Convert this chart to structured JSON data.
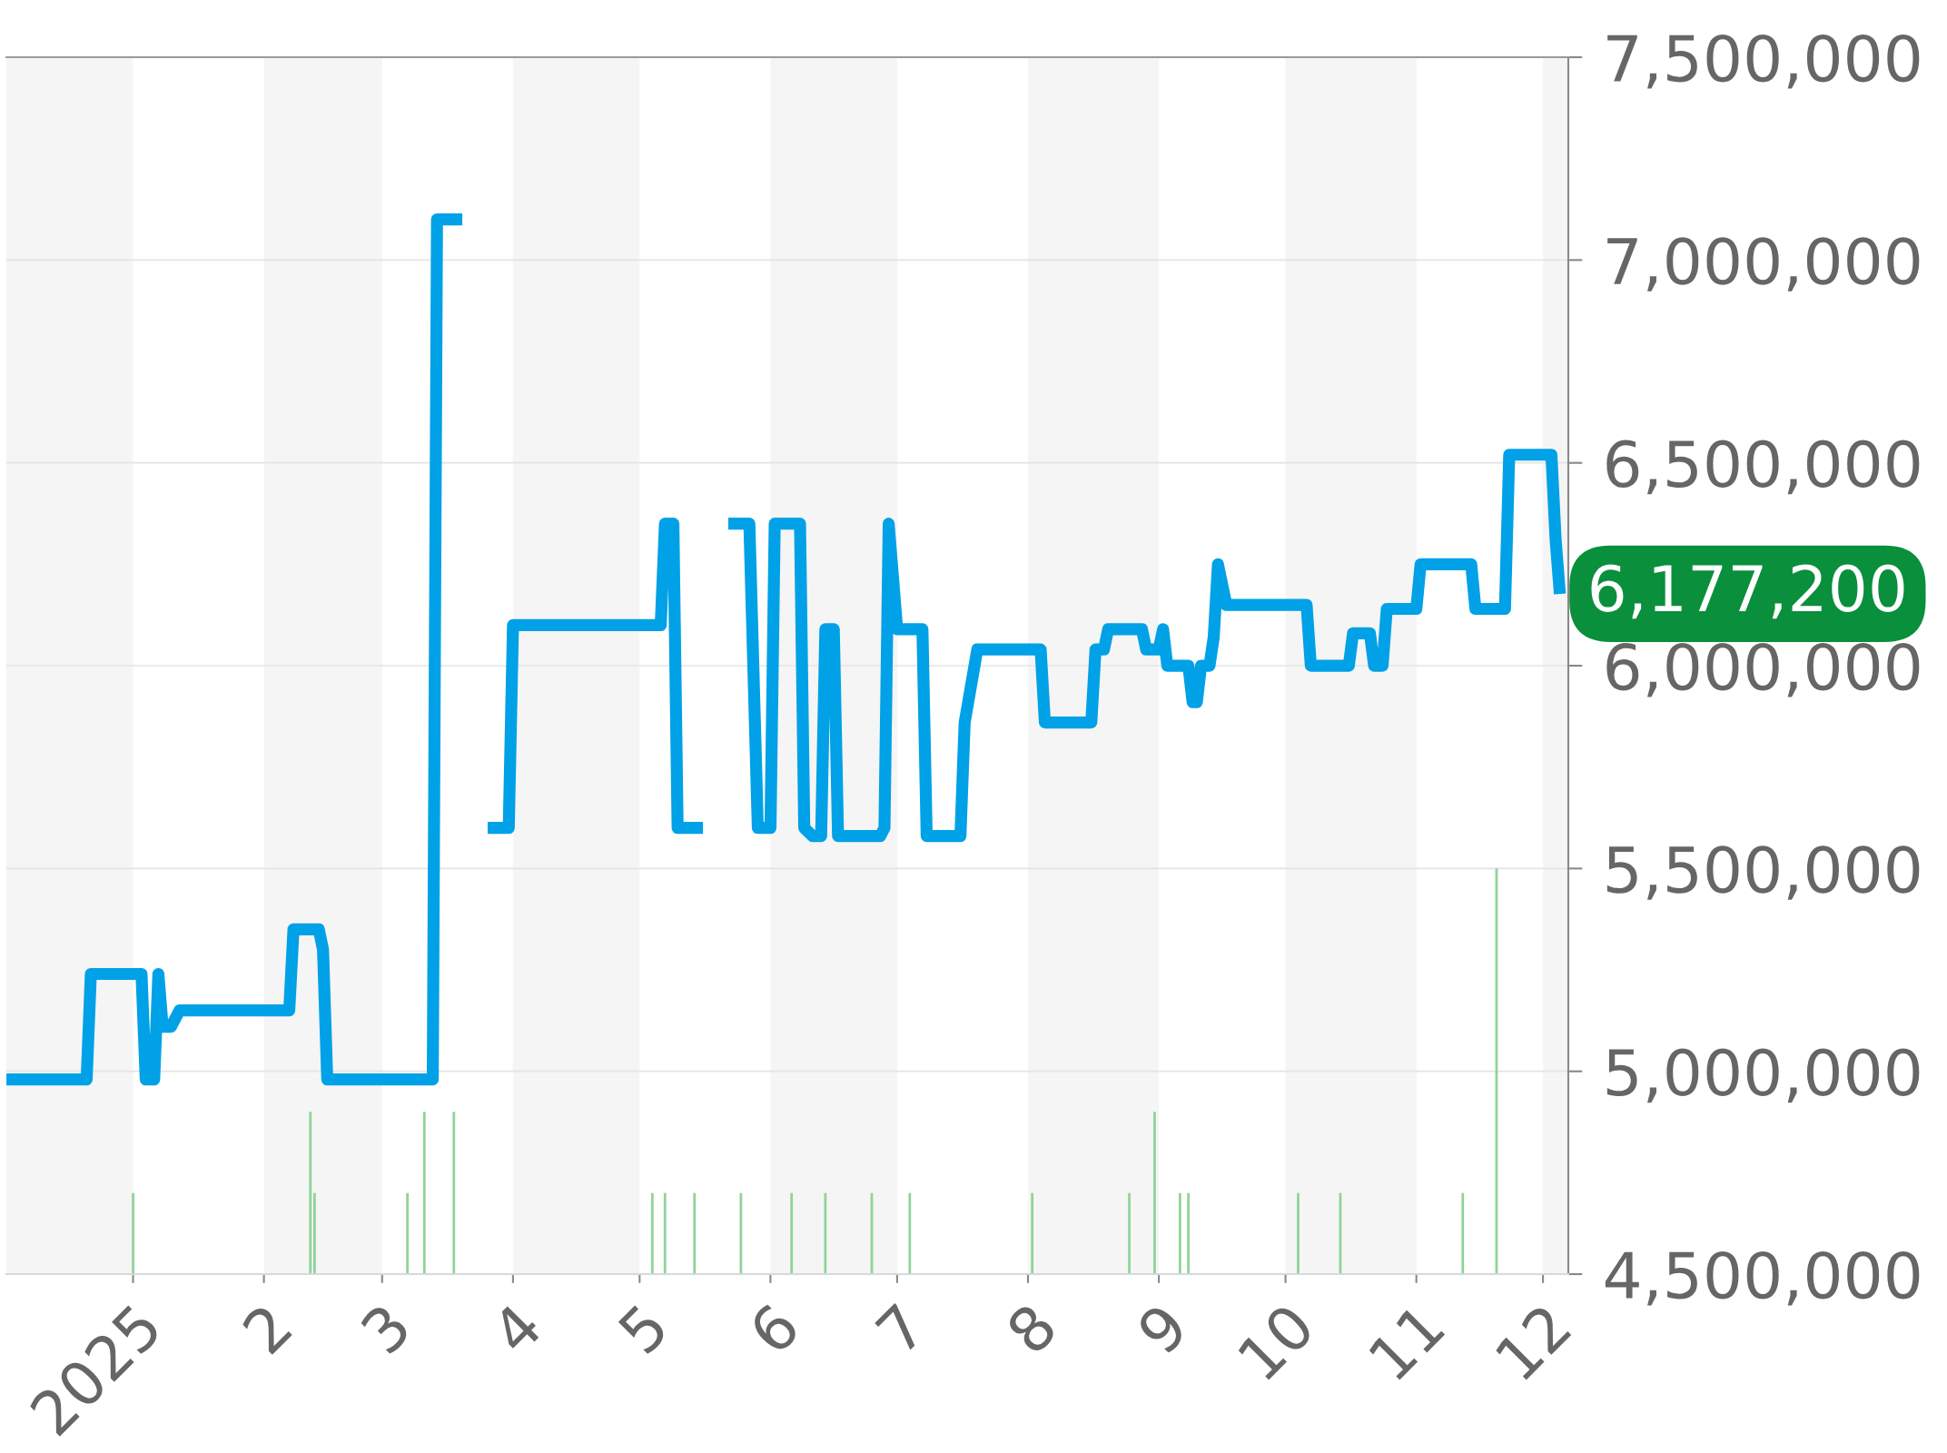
{
  "chart_data": {
    "type": "line",
    "x": [
      "2024-12-02",
      "2024-12-21",
      "2024-12-22",
      "2025-01-03",
      "2025-01-04",
      "2025-01-06",
      "2025-01-07",
      "2025-01-08",
      "2025-01-10",
      "2025-01-12",
      "2025-02-07",
      "2025-02-08",
      "2025-02-14",
      "2025-02-15",
      "2025-02-16",
      "2025-03-13",
      "2025-03-14",
      "2025-03-20",
      "2025-03-23",
      "2025-03-26",
      "2025-03-31",
      "2025-04-01",
      "2025-05-06",
      "2025-05-07",
      "2025-05-09",
      "2025-05-10",
      "2025-05-16",
      "2025-05-19",
      "2025-05-22",
      "2025-05-27",
      "2025-05-29",
      "2025-06-01",
      "2025-06-02",
      "2025-06-08",
      "2025-06-09",
      "2025-06-11",
      "2025-06-13",
      "2025-06-14",
      "2025-06-16",
      "2025-06-17",
      "2025-06-27",
      "2025-06-28",
      "2025-06-29",
      "2025-07-01",
      "2025-07-07",
      "2025-07-08",
      "2025-07-16",
      "2025-07-17",
      "2025-07-20",
      "2025-08-04",
      "2025-08-05",
      "2025-08-16",
      "2025-08-17",
      "2025-08-19",
      "2025-08-20",
      "2025-08-28",
      "2025-08-29",
      "2025-09-01",
      "2025-09-02",
      "2025-09-03",
      "2025-09-08",
      "2025-09-09",
      "2025-09-10",
      "2025-09-11",
      "2025-09-13",
      "2025-09-14",
      "2025-09-15",
      "2025-09-17",
      "2025-10-06",
      "2025-10-07",
      "2025-10-16",
      "2025-10-17",
      "2025-10-21",
      "2025-10-22",
      "2025-10-24",
      "2025-10-25",
      "2025-11-01",
      "2025-11-02",
      "2025-11-14",
      "2025-11-15",
      "2025-11-22",
      "2025-11-23",
      "2025-12-03",
      "2025-12-04",
      "2025-12-05"
    ],
    "series": [
      {
        "color": "#00a1e6",
        "values": [
          4980000,
          4980000,
          5240000,
          5240000,
          4980000,
          4980000,
          5240000,
          5110000,
          5110000,
          5150000,
          5150000,
          5350000,
          5350000,
          5300000,
          4980000,
          4980000,
          7100000,
          7100000,
          null,
          5600000,
          5600000,
          6100000,
          6100000,
          6350000,
          6350000,
          5600000,
          5600000,
          null,
          6350000,
          6350000,
          5600000,
          5600000,
          6350000,
          6350000,
          5600000,
          5580000,
          5580000,
          6090000,
          6090000,
          5580000,
          5580000,
          5600000,
          6350000,
          6090000,
          6090000,
          5580000,
          5580000,
          5860000,
          6040000,
          6040000,
          5860000,
          5860000,
          6040000,
          6040000,
          6090000,
          6090000,
          6040000,
          6040000,
          6090000,
          6000000,
          6000000,
          5910000,
          5910000,
          6000000,
          6000000,
          6070000,
          6250000,
          6150000,
          6150000,
          6000000,
          6000000,
          6080000,
          6080000,
          6000000,
          6000000,
          6140000,
          6140000,
          6250000,
          6250000,
          6140000,
          6140000,
          6520000,
          6520000,
          6310000,
          6177200
        ],
        "value_labels": [
          null,
          null,
          null,
          null,
          null,
          null,
          null,
          null,
          null,
          null,
          null,
          null,
          null,
          null,
          null,
          null,
          null,
          null,
          null,
          null,
          null,
          null,
          null,
          null,
          null,
          null,
          null,
          null,
          null,
          null,
          null,
          null,
          null,
          null,
          null,
          null,
          null,
          null,
          null,
          null,
          null,
          null,
          null,
          null,
          null,
          null,
          null,
          null,
          null,
          null,
          null,
          null,
          null,
          null,
          null,
          null,
          null,
          null,
          null,
          null,
          null,
          null,
          null,
          null,
          null,
          null,
          null,
          null,
          null,
          null,
          null,
          null,
          null,
          null,
          null,
          null,
          null,
          null,
          null,
          null,
          null,
          null,
          null,
          null,
          "6,177,200"
        ]
      },
      {
        "type": "bar",
        "color": "#8dd49b",
        "x": [
          "2025-01-01",
          "2025-02-12",
          "2025-02-13",
          "2025-03-07",
          "2025-03-11",
          "2025-03-18",
          "2025-05-04",
          "2025-05-07",
          "2025-05-14",
          "2025-05-25",
          "2025-06-06",
          "2025-06-14",
          "2025-06-25",
          "2025-07-04",
          "2025-08-02",
          "2025-08-25",
          "2025-08-31",
          "2025-09-06",
          "2025-09-08",
          "2025-10-04",
          "2025-10-14",
          "2025-11-12",
          "2025-11-20"
        ],
        "values": [
          200000,
          400000,
          200000,
          200000,
          400000,
          400000,
          200000,
          200000,
          200000,
          200000,
          200000,
          200000,
          200000,
          200000,
          200000,
          200000,
          400000,
          200000,
          200000,
          200000,
          200000,
          200000,
          1000000
        ],
        "base": [
          4500000,
          4500000,
          4500000,
          4500000,
          4500000,
          4500000,
          4500000,
          4500000,
          4500000,
          4500000,
          4500000,
          4500000,
          4500000,
          4500000,
          4500000,
          4500000,
          4500000,
          4500000,
          4500000,
          4500000,
          4500000,
          4500000,
          4500000
        ]
      }
    ],
    "xlim": [
      "2024-12-02",
      "2025-12-07"
    ],
    "xticks": [
      {
        "value": "2025-01-01",
        "label": "2025"
      },
      {
        "value": "2025-02-01",
        "label": "2"
      },
      {
        "value": "2025-03-01",
        "label": "3"
      },
      {
        "value": "2025-04-01",
        "label": "4"
      },
      {
        "value": "2025-05-01",
        "label": "5"
      },
      {
        "value": "2025-06-01",
        "label": "6"
      },
      {
        "value": "2025-07-01",
        "label": "7"
      },
      {
        "value": "2025-08-01",
        "label": "8"
      },
      {
        "value": "2025-09-01",
        "label": "9"
      },
      {
        "value": "2025-10-01",
        "label": "10"
      },
      {
        "value": "2025-11-01",
        "label": "11"
      },
      {
        "value": "2025-12-01",
        "label": "12"
      }
    ],
    "ylim": [
      4500000,
      7500000
    ],
    "yticks": [
      {
        "value": 4500000,
        "label": "4,500,000"
      },
      {
        "value": 5000000,
        "label": "5,000,000"
      },
      {
        "value": 5500000,
        "label": "5,500,000"
      },
      {
        "value": 6000000,
        "label": "6,000,000"
      },
      {
        "value": 6500000,
        "label": "6,500,000"
      },
      {
        "value": 7000000,
        "label": "7,000,000"
      },
      {
        "value": 7500000,
        "label": "7,500,000"
      }
    ],
    "grid": "y",
    "marker": "none",
    "line_style": "solid",
    "bands": [
      {
        "axis": "x",
        "from": "2024-12-02",
        "to": "2025-01-01",
        "color": "#f5f5f5"
      },
      {
        "axis": "x",
        "from": "2025-02-01",
        "to": "2025-03-01",
        "color": "#f5f5f5"
      },
      {
        "axis": "x",
        "from": "2025-04-01",
        "to": "2025-05-01",
        "color": "#f5f5f5"
      },
      {
        "axis": "x",
        "from": "2025-06-01",
        "to": "2025-07-01",
        "color": "#f5f5f5"
      },
      {
        "axis": "x",
        "from": "2025-08-01",
        "to": "2025-09-01",
        "color": "#f5f5f5"
      },
      {
        "axis": "x",
        "from": "2025-10-01",
        "to": "2025-11-01",
        "color": "#f5f5f5"
      },
      {
        "axis": "x",
        "from": "2025-12-01",
        "to": "2025-12-07",
        "color": "#f5f5f5"
      }
    ]
  }
}
